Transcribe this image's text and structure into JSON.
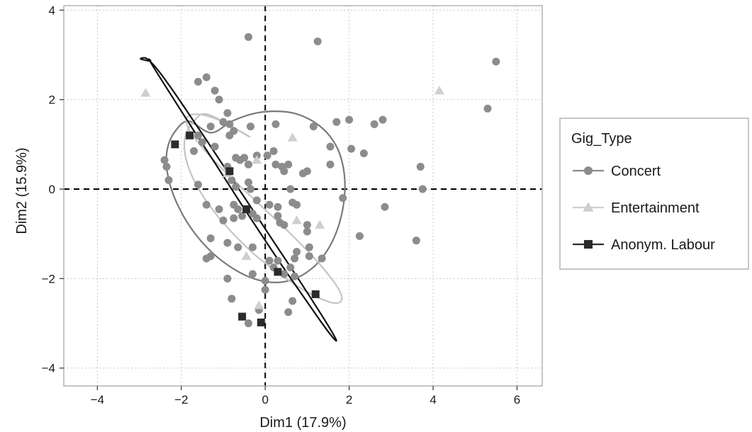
{
  "chart_data": {
    "type": "scatter",
    "title": "",
    "xlabel": "Dim1 (17.9%)",
    "ylabel": "Dim2 (15.9%)",
    "xlim": [
      -4.8,
      6.6
    ],
    "ylim": [
      -4.4,
      4.1
    ],
    "xticks": [
      -4,
      -2,
      0,
      2,
      4,
      6
    ],
    "yticks": [
      -4,
      -2,
      0,
      2,
      4
    ],
    "xtick_labels": [
      "−4",
      "−2",
      "0",
      "2",
      "4",
      "6"
    ],
    "ytick_labels": [
      "−4",
      "−2",
      "0",
      "2",
      "4"
    ],
    "grid": true,
    "grid_style": "dotted",
    "reference_lines": {
      "x": 0,
      "y": 0,
      "style": "dashed"
    },
    "legend": {
      "title": "Gig_Type",
      "position": "right"
    },
    "colors": {
      "Concert": "#8c8c8c",
      "Entertainment": "#cfcfcf",
      "Anonym. Labour": "#2b2b2b",
      "ellipse_Concert": "#7a7a7a",
      "ellipse_Entertainment": "#c4c4c4",
      "ellipse_Anonym. Labour": "#111111"
    },
    "series": [
      {
        "name": "Concert",
        "marker": "circle",
        "points": [
          [
            -0.4,
            3.4
          ],
          [
            1.25,
            3.3
          ],
          [
            -1.4,
            2.5
          ],
          [
            -1.6,
            2.4
          ],
          [
            -1.2,
            2.2
          ],
          [
            -1.1,
            2.0
          ],
          [
            -0.9,
            1.7
          ],
          [
            -1.6,
            1.2
          ],
          [
            -1.3,
            1.4
          ],
          [
            -1.0,
            1.5
          ],
          [
            -0.85,
            1.45
          ],
          [
            -0.75,
            1.3
          ],
          [
            -0.85,
            1.2
          ],
          [
            -0.35,
            1.4
          ],
          [
            0.25,
            1.45
          ],
          [
            1.15,
            1.4
          ],
          [
            1.7,
            1.5
          ],
          [
            2.0,
            1.55
          ],
          [
            2.6,
            1.45
          ],
          [
            2.8,
            1.55
          ],
          [
            5.3,
            1.8
          ],
          [
            5.5,
            2.85
          ],
          [
            -1.5,
            1.05
          ],
          [
            -1.2,
            0.95
          ],
          [
            -1.7,
            0.85
          ],
          [
            -0.7,
            0.7
          ],
          [
            -0.6,
            0.65
          ],
          [
            -0.5,
            0.7
          ],
          [
            -0.4,
            0.55
          ],
          [
            -0.2,
            0.75
          ],
          [
            0.05,
            0.75
          ],
          [
            0.2,
            0.85
          ],
          [
            0.25,
            0.55
          ],
          [
            0.4,
            0.5
          ],
          [
            0.45,
            0.4
          ],
          [
            0.55,
            0.55
          ],
          [
            0.9,
            0.35
          ],
          [
            1.0,
            0.4
          ],
          [
            1.55,
            0.55
          ],
          [
            1.55,
            0.95
          ],
          [
            2.05,
            0.9
          ],
          [
            2.35,
            0.8
          ],
          [
            3.7,
            0.5
          ],
          [
            3.75,
            0.0
          ],
          [
            -2.4,
            0.65
          ],
          [
            -2.35,
            0.5
          ],
          [
            -2.3,
            0.2
          ],
          [
            -1.6,
            0.1
          ],
          [
            -0.9,
            0.5
          ],
          [
            -0.8,
            0.2
          ],
          [
            -0.7,
            0.05
          ],
          [
            -0.4,
            0.15
          ],
          [
            -0.35,
            0.0
          ],
          [
            -0.2,
            -0.25
          ],
          [
            0.1,
            -0.35
          ],
          [
            0.3,
            -0.4
          ],
          [
            0.6,
            0.0
          ],
          [
            0.65,
            -0.3
          ],
          [
            0.75,
            -0.35
          ],
          [
            1.85,
            -0.2
          ],
          [
            2.85,
            -0.4
          ],
          [
            -1.4,
            -0.35
          ],
          [
            -1.1,
            -0.45
          ],
          [
            -0.75,
            -0.35
          ],
          [
            -0.65,
            -0.45
          ],
          [
            -0.55,
            -0.6
          ],
          [
            -0.3,
            -0.55
          ],
          [
            -0.2,
            -0.65
          ],
          [
            0.3,
            -0.6
          ],
          [
            0.35,
            -0.75
          ],
          [
            0.45,
            -0.8
          ],
          [
            1.0,
            -0.8
          ],
          [
            1.0,
            -0.95
          ],
          [
            -1.0,
            -0.7
          ],
          [
            -0.75,
            -0.65
          ],
          [
            -1.3,
            -1.1
          ],
          [
            -1.4,
            -1.55
          ],
          [
            -1.3,
            -1.5
          ],
          [
            -0.9,
            -1.2
          ],
          [
            -0.65,
            -1.3
          ],
          [
            -0.3,
            -1.3
          ],
          [
            0.1,
            -1.6
          ],
          [
            0.2,
            -1.75
          ],
          [
            0.3,
            -1.6
          ],
          [
            0.6,
            -1.75
          ],
          [
            0.7,
            -1.55
          ],
          [
            0.75,
            -1.4
          ],
          [
            1.05,
            -1.3
          ],
          [
            1.05,
            -1.5
          ],
          [
            1.35,
            -1.55
          ],
          [
            2.25,
            -1.05
          ],
          [
            3.6,
            -1.15
          ],
          [
            -0.9,
            -2.0
          ],
          [
            -0.3,
            -1.9
          ],
          [
            0.0,
            -2.05
          ],
          [
            0.0,
            -2.25
          ],
          [
            0.45,
            -1.9
          ],
          [
            0.7,
            -1.95
          ],
          [
            0.65,
            -2.5
          ],
          [
            0.55,
            -2.75
          ],
          [
            -0.8,
            -2.45
          ],
          [
            -0.4,
            -3.0
          ],
          [
            -0.15,
            -2.7
          ]
        ]
      },
      {
        "name": "Entertainment",
        "marker": "triangle",
        "points": [
          [
            -2.85,
            2.15
          ],
          [
            4.15,
            2.2
          ],
          [
            0.65,
            1.15
          ],
          [
            -0.2,
            0.65
          ],
          [
            -0.9,
            0.35
          ],
          [
            0.75,
            -0.7
          ],
          [
            1.3,
            -0.8
          ],
          [
            -0.45,
            -1.5
          ],
          [
            -0.15,
            -2.6
          ]
        ]
      },
      {
        "name": "Anonym. Labour",
        "marker": "square",
        "points": [
          [
            -2.15,
            1.0
          ],
          [
            -1.8,
            1.2
          ],
          [
            -0.85,
            0.4
          ],
          [
            -0.45,
            -0.45
          ],
          [
            0.3,
            -1.85
          ],
          [
            1.2,
            -2.35
          ],
          [
            -0.55,
            -2.85
          ],
          [
            -0.1,
            -2.98
          ]
        ]
      }
    ],
    "ellipses": [
      {
        "group": "Concert",
        "points": [
          [
            -1.84,
            1.52
          ],
          [
            -2.17,
            1.26
          ],
          [
            -2.33,
            0.91
          ],
          [
            -2.35,
            0.49
          ],
          [
            -2.24,
            0.01
          ],
          [
            -2.02,
            -0.48
          ],
          [
            -1.71,
            -0.95
          ],
          [
            -1.32,
            -1.37
          ],
          [
            -0.89,
            -1.7
          ],
          [
            -0.44,
            -1.94
          ],
          [
            0.02,
            -2.07
          ],
          [
            0.46,
            -2.07
          ],
          [
            0.85,
            -1.94
          ],
          [
            1.2,
            -1.7
          ],
          [
            1.48,
            -1.37
          ],
          [
            1.7,
            -0.95
          ],
          [
            1.84,
            -0.48
          ],
          [
            1.9,
            0.01
          ],
          [
            1.86,
            0.49
          ],
          [
            1.72,
            0.91
          ],
          [
            1.47,
            1.26
          ],
          [
            1.13,
            1.52
          ],
          [
            0.71,
            1.69
          ],
          [
            0.24,
            1.74
          ],
          [
            -0.27,
            1.69
          ],
          [
            -0.79,
            1.52
          ],
          [
            -1.29,
            1.26
          ]
        ]
      },
      {
        "group": "Entertainment",
        "points": [
          [
            -1.37,
            1.67
          ],
          [
            -1.73,
            1.48
          ],
          [
            -1.91,
            1.16
          ],
          [
            -1.9,
            0.73
          ],
          [
            -1.71,
            0.22
          ],
          [
            -1.35,
            -0.34
          ],
          [
            -0.86,
            -0.9
          ],
          [
            -0.29,
            -1.43
          ],
          [
            0.32,
            -1.88
          ],
          [
            0.89,
            -2.24
          ],
          [
            1.35,
            -2.46
          ],
          [
            1.67,
            -2.55
          ],
          [
            1.82,
            -2.48
          ],
          [
            1.77,
            -2.27
          ],
          [
            1.52,
            -1.93
          ],
          [
            1.1,
            -1.47
          ],
          [
            0.55,
            -0.95
          ],
          [
            -0.07,
            -0.4
          ],
          [
            -0.67,
            0.13
          ],
          [
            -1.2,
            0.62
          ],
          [
            -1.59,
            1.03
          ],
          [
            -1.83,
            1.35
          ],
          [
            -1.88,
            1.57
          ],
          [
            -1.73,
            1.67
          ],
          [
            -1.4,
            1.64
          ],
          [
            -0.93,
            1.47
          ],
          [
            -0.38,
            1.17
          ]
        ]
      },
      {
        "group": "Anonym. Labour",
        "points": [
          [
            -2.97,
            2.91
          ],
          [
            -2.83,
            2.92
          ],
          [
            -2.6,
            2.71
          ],
          [
            -2.28,
            2.31
          ],
          [
            -1.87,
            1.75
          ],
          [
            -1.39,
            1.08
          ],
          [
            -0.86,
            0.33
          ],
          [
            -0.3,
            -0.46
          ],
          [
            0.24,
            -1.23
          ],
          [
            0.75,
            -1.95
          ],
          [
            1.17,
            -2.56
          ],
          [
            1.48,
            -3.02
          ],
          [
            1.66,
            -3.31
          ],
          [
            1.69,
            -3.39
          ],
          [
            1.57,
            -3.27
          ],
          [
            1.31,
            -2.94
          ],
          [
            0.93,
            -2.43
          ],
          [
            0.45,
            -1.78
          ],
          [
            -0.09,
            -1.02
          ],
          [
            -0.65,
            -0.22
          ],
          [
            -1.19,
            0.57
          ],
          [
            -1.69,
            1.29
          ],
          [
            -2.12,
            1.92
          ],
          [
            -2.45,
            2.41
          ],
          [
            -2.67,
            2.74
          ],
          [
            -2.77,
            2.9
          ],
          [
            -2.74,
            2.86
          ]
        ]
      }
    ]
  }
}
